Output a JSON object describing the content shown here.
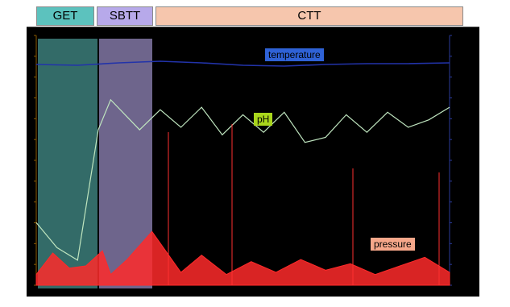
{
  "phases": [
    {
      "key": "get",
      "label": "GET",
      "color": "#5cc2be"
    },
    {
      "key": "sbtt",
      "label": "SBTT",
      "color": "#b7a9ea"
    },
    {
      "key": "ctt",
      "label": "CTT",
      "color": "#f6c6ad"
    }
  ],
  "chart_data": {
    "type": "line",
    "title": "",
    "series": [
      {
        "name": "temperature",
        "label_color": "#2f62d6",
        "line_color": "#2233aa",
        "x": [
          0,
          10,
          20,
          30,
          40,
          50,
          60,
          70,
          80,
          90,
          100
        ],
        "values": [
          37.4,
          37.3,
          37.6,
          37.8,
          37.6,
          37.3,
          37.2,
          37.4,
          37.5,
          37.5,
          37.6
        ]
      },
      {
        "name": "pH",
        "label_color": "#a9d61c",
        "line_color": "#bfe5bf",
        "x": [
          0,
          5,
          10,
          15,
          18,
          25,
          30,
          35,
          40,
          45,
          50,
          55,
          60,
          65,
          70,
          75,
          80,
          85,
          90,
          95,
          100
        ],
        "values": [
          2.5,
          1.5,
          1.0,
          6.2,
          7.4,
          6.2,
          7.0,
          6.3,
          7.1,
          6.0,
          6.8,
          6.1,
          6.9,
          5.7,
          5.9,
          6.8,
          6.1,
          6.9,
          6.3,
          6.6,
          7.1
        ]
      },
      {
        "name": "pressure",
        "label_color": "#f6a78a",
        "line_color": "#ff2a2a",
        "x": [
          0,
          4,
          8,
          12,
          16,
          18,
          22,
          28,
          35,
          40,
          46,
          52,
          58,
          64,
          70,
          76,
          82,
          88,
          94,
          100
        ],
        "values": [
          0.5,
          1.5,
          0.8,
          0.9,
          1.6,
          0.5,
          1.2,
          2.5,
          0.6,
          1.4,
          0.5,
          1.1,
          0.6,
          1.2,
          0.7,
          1.0,
          0.5,
          0.9,
          1.3,
          0.6
        ]
      }
    ],
    "ph_ylim": [
      0,
      9
    ],
    "grid": false,
    "legend": "inline labels"
  }
}
